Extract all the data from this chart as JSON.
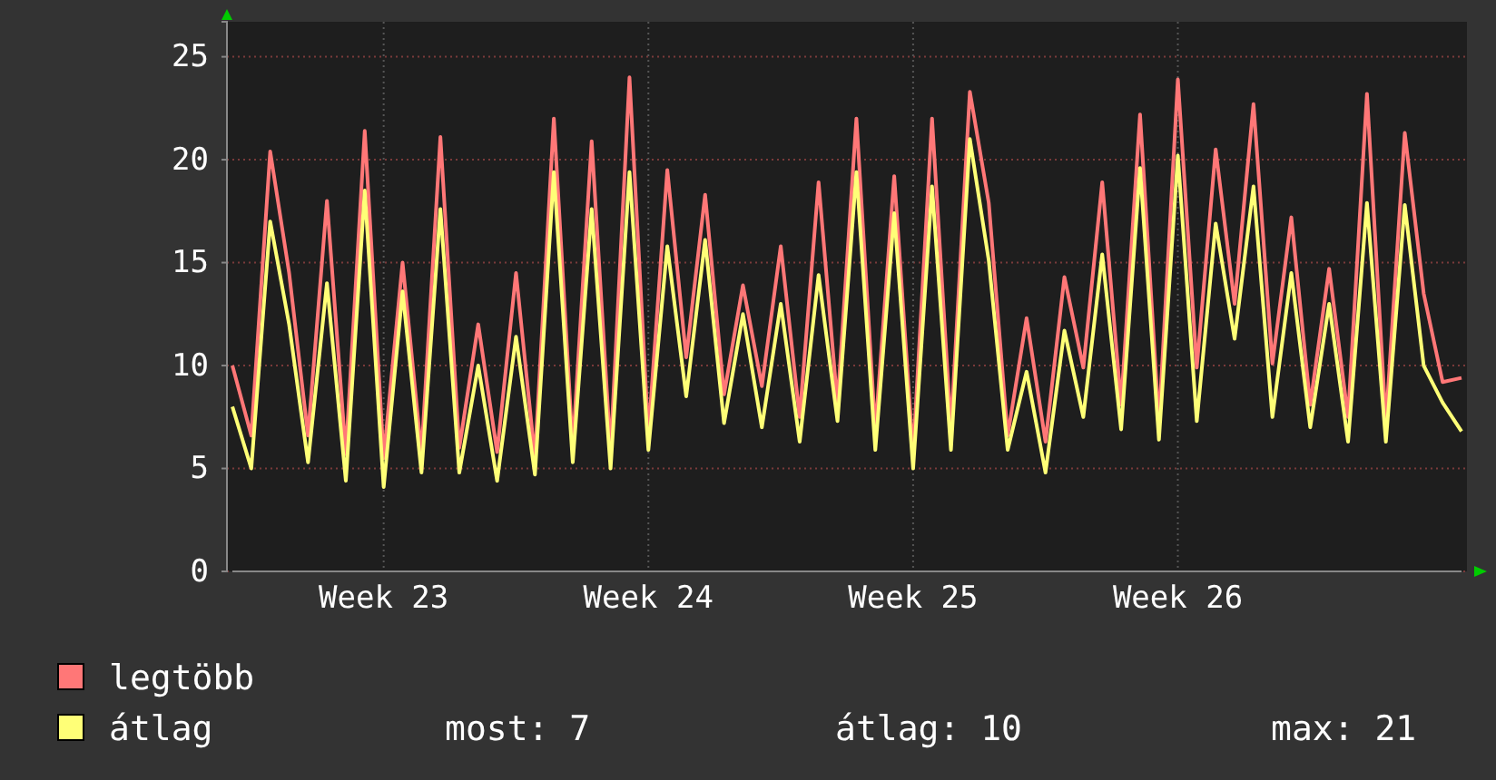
{
  "chart_data": {
    "type": "line",
    "categories": [
      null,
      null,
      null,
      null,
      null,
      null,
      null,
      null,
      "Week 23",
      null,
      null,
      null,
      null,
      null,
      null,
      null,
      null,
      null,
      null,
      null,
      null,
      null,
      "Week 24",
      null,
      null,
      null,
      null,
      null,
      null,
      null,
      null,
      null,
      null,
      null,
      null,
      null,
      "Week 25",
      null,
      null,
      null,
      null,
      null,
      null,
      null,
      null,
      null,
      null,
      null,
      null,
      null,
      "Week 26",
      null,
      null,
      null,
      null,
      null,
      null,
      null,
      null,
      null,
      null,
      null,
      null,
      null,
      null,
      null
    ],
    "series": [
      {
        "name": "legtöbb",
        "color": "#ff7777",
        "values": [
          10,
          6.6,
          20.4,
          14.5,
          6.6,
          18,
          5.7,
          21.4,
          5.5,
          15,
          5.7,
          21.1,
          6,
          12,
          5.8,
          14.5,
          5.5,
          22,
          6,
          20.9,
          5.8,
          24,
          6.6,
          19.5,
          10.4,
          18.3,
          8.6,
          13.9,
          9,
          15.8,
          7.5,
          18.9,
          8.1,
          22,
          6.8,
          19.2,
          5.7,
          22,
          6.9,
          23.3,
          17.9,
          6.6,
          12.3,
          6.3,
          14.3,
          9.9,
          18.9,
          8.1,
          22.2,
          7.2,
          23.9,
          9.9,
          20.5,
          13,
          22.7,
          10.1,
          17.2,
          8.1,
          14.7,
          7.5,
          23.2,
          7.2,
          21.3,
          13.5,
          9.2,
          9.4
        ]
      },
      {
        "name": "átlag",
        "color": "#ffff77",
        "values": [
          8,
          5,
          17,
          12,
          5.3,
          14,
          4.4,
          18.5,
          4.1,
          13.6,
          4.8,
          17.6,
          4.8,
          10,
          4.4,
          11.4,
          4.7,
          19.4,
          5.3,
          17.6,
          5,
          19.4,
          5.9,
          15.8,
          8.5,
          16.1,
          7.2,
          12.5,
          7,
          13,
          6.3,
          14.4,
          7.3,
          19.4,
          5.9,
          17.4,
          5,
          18.7,
          5.9,
          21,
          15.1,
          5.9,
          9.7,
          4.8,
          11.7,
          7.5,
          15.4,
          6.9,
          19.6,
          6.4,
          20.2,
          7.3,
          16.9,
          11.3,
          18.7,
          7.5,
          14.5,
          7,
          13,
          6.3,
          17.9,
          6.3,
          17.8,
          10,
          8.2,
          6.8
        ]
      }
    ],
    "ylim": [
      0,
      26.7
    ],
    "yticks": [
      0,
      5,
      10,
      15,
      20,
      25
    ],
    "grid": true,
    "legend": "bottom left",
    "annotations": [
      "most: 7",
      "átlag: 10",
      "max: 21"
    ]
  }
}
